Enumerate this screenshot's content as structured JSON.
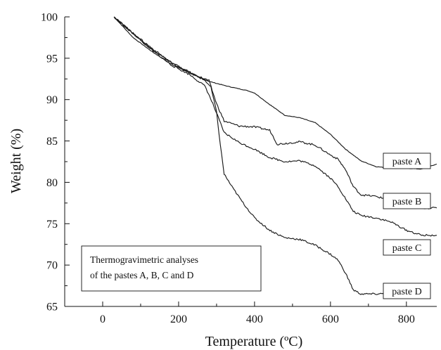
{
  "chart_data": {
    "type": "line",
    "xlabel": "Temperature (ºC)",
    "ylabel": "Weight (%)",
    "xlim": [
      -100,
      880
    ],
    "ylim": [
      65,
      100
    ],
    "x_ticks": [
      0,
      200,
      400,
      600,
      800
    ],
    "y_ticks": [
      65,
      70,
      75,
      80,
      85,
      90,
      95,
      100
    ],
    "grid": false,
    "annotation": [
      "Thermogravimetric analyses",
      "of the pastes A, B, C and D"
    ],
    "series": [
      {
        "name": "paste A",
        "x": [
          30,
          80,
          130,
          180,
          230,
          280,
          330,
          380,
          400,
          440,
          480,
          520,
          560,
          600,
          640,
          680,
          720,
          760,
          800,
          840,
          880
        ],
        "y": [
          100,
          97.5,
          95.8,
          94.3,
          93.2,
          92.2,
          91.6,
          91.1,
          90.8,
          89.4,
          88.1,
          87.8,
          87.2,
          85.8,
          84.0,
          82.6,
          81.9,
          81.7,
          81.7,
          81.6,
          82.2
        ]
      },
      {
        "name": "paste B",
        "x": [
          30,
          80,
          130,
          180,
          230,
          280,
          300,
          320,
          360,
          400,
          440,
          460,
          480,
          520,
          560,
          600,
          620,
          640,
          660,
          680,
          720,
          760,
          800,
          840,
          880
        ],
        "y": [
          100,
          98.0,
          96.0,
          94.5,
          93.2,
          92.3,
          89.5,
          87.4,
          86.8,
          86.7,
          86.3,
          84.6,
          84.7,
          84.9,
          84.5,
          83.3,
          82.8,
          81.5,
          79.5,
          78.5,
          78.3,
          77.8,
          77.3,
          76.9,
          76.9
        ]
      },
      {
        "name": "paste C",
        "x": [
          30,
          80,
          130,
          180,
          230,
          270,
          290,
          320,
          360,
          400,
          440,
          480,
          520,
          560,
          600,
          620,
          640,
          660,
          680,
          720,
          760,
          800,
          840,
          880
        ],
        "y": [
          100,
          98.0,
          96.0,
          94.2,
          93.0,
          91.6,
          89.5,
          86.0,
          84.8,
          84.0,
          83.0,
          82.5,
          82.6,
          82.0,
          80.5,
          79.5,
          78.0,
          76.5,
          76.0,
          75.7,
          75.2,
          74.2,
          73.6,
          73.6
        ]
      },
      {
        "name": "paste D",
        "x": [
          30,
          80,
          130,
          180,
          230,
          270,
          285,
          300,
          310,
          320,
          340,
          370,
          400,
          440,
          480,
          520,
          560,
          600,
          620,
          640,
          660,
          680,
          720,
          760
        ],
        "y": [
          100,
          98.0,
          96.2,
          94.5,
          93.3,
          92.3,
          91.5,
          88.5,
          84.5,
          81.0,
          79.5,
          77.5,
          75.7,
          74.2,
          73.3,
          73.1,
          72.4,
          71.3,
          70.6,
          69.0,
          67.0,
          66.5,
          66.5,
          66.6
        ]
      }
    ]
  }
}
